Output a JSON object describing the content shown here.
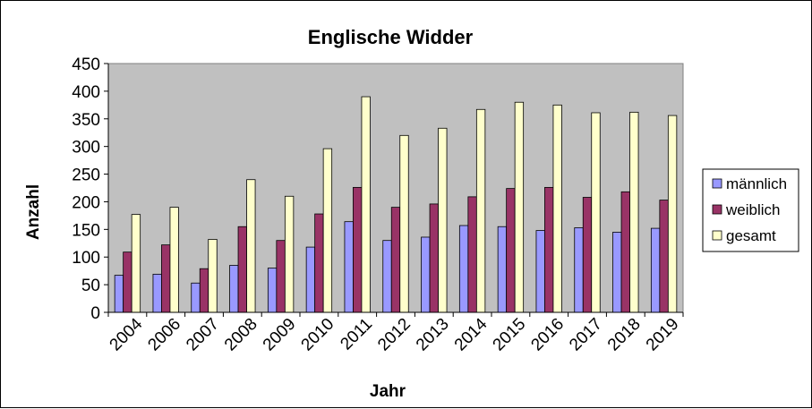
{
  "chart_data": {
    "type": "bar",
    "title": "Englische Widder",
    "xlabel": "Jahr",
    "ylabel": "Anzahl",
    "categories": [
      "2004",
      "2006",
      "2007",
      "2008",
      "2009",
      "2010",
      "2011",
      "2012",
      "2013",
      "2014",
      "2015",
      "2016",
      "2017",
      "2018",
      "2019"
    ],
    "series": [
      {
        "name": "männlich",
        "color": "#9999ff",
        "values": [
          67,
          69,
          53,
          85,
          80,
          118,
          164,
          130,
          136,
          157,
          155,
          148,
          153,
          145,
          152
        ]
      },
      {
        "name": "weiblich",
        "color": "#993366",
        "values": [
          109,
          122,
          79,
          155,
          130,
          178,
          226,
          190,
          196,
          209,
          224,
          226,
          208,
          218,
          203
        ]
      },
      {
        "name": "gesamt",
        "color": "#ffffcc",
        "values": [
          177,
          190,
          132,
          240,
          210,
          296,
          390,
          320,
          333,
          367,
          380,
          375,
          361,
          362,
          356
        ]
      }
    ],
    "ylim": [
      0,
      450
    ],
    "yticks": [
      0,
      50,
      100,
      150,
      200,
      250,
      300,
      350,
      400,
      450
    ],
    "plot_background": "#c0c0c0",
    "grid": false,
    "legend_position": "right"
  }
}
